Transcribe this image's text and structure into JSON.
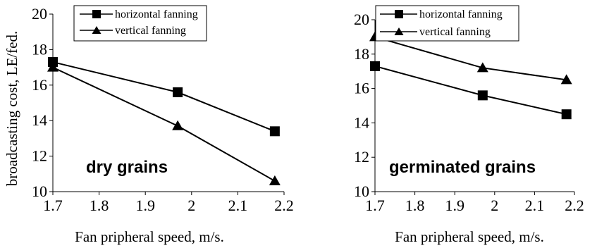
{
  "chart_data": [
    {
      "type": "line",
      "ylabel": "broadcasting cost, LE/fed.",
      "xlabel": "Fan pripheral speed, m/s.",
      "xlim": [
        1.7,
        2.2
      ],
      "ylim": [
        10,
        20
      ],
      "xticks": [
        "1.7",
        "1.8",
        "1.9",
        "2",
        "2.1",
        "2.2"
      ],
      "yticks": [
        "10",
        "12",
        "14",
        "16",
        "18",
        "20"
      ],
      "annotation": "dry grains",
      "legend_position": "top-right",
      "series": [
        {
          "name": "horizontal fanning",
          "marker": "square",
          "x": [
            1.7,
            1.97,
            2.18
          ],
          "y": [
            17.3,
            15.6,
            13.4
          ]
        },
        {
          "name": "vertical fanning",
          "marker": "triangle",
          "x": [
            1.7,
            1.97,
            2.18
          ],
          "y": [
            17.0,
            13.7,
            10.6
          ]
        }
      ]
    },
    {
      "type": "line",
      "ylabel": "",
      "xlabel": "Fan pripheral speed, m/s.",
      "xlim": [
        1.7,
        2.2
      ],
      "ylim": [
        10,
        20
      ],
      "xticks": [
        "1.7",
        "1.8",
        "1.9",
        "2",
        "2.1",
        "2.2"
      ],
      "yticks": [
        "10",
        "12",
        "14",
        "16",
        "18",
        "20"
      ],
      "annotation": "germinated grains",
      "legend_position": "top-right",
      "series": [
        {
          "name": "horizontal fanning",
          "marker": "square",
          "x": [
            1.7,
            1.97,
            2.18
          ],
          "y": [
            17.3,
            15.6,
            14.5
          ]
        },
        {
          "name": "vertical fanning",
          "marker": "triangle",
          "x": [
            1.7,
            1.97,
            2.18
          ],
          "y": [
            19.0,
            17.2,
            16.5
          ]
        }
      ]
    }
  ]
}
